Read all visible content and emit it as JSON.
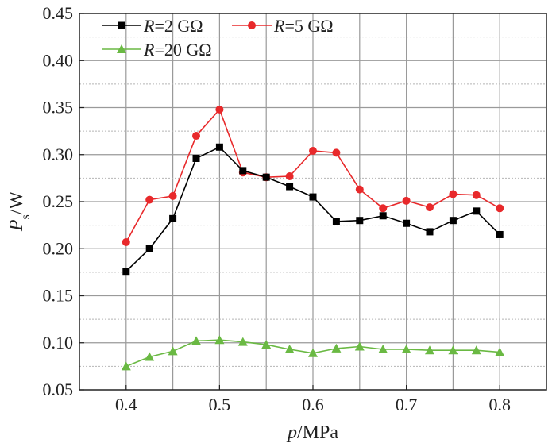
{
  "chart_data": {
    "type": "line",
    "xlabel": {
      "var": "p",
      "unit": "/MPa"
    },
    "ylabel": {
      "var": "P",
      "sub": "s",
      "unit": "/W"
    },
    "xlim": [
      0.35,
      0.85
    ],
    "ylim": [
      0.05,
      0.45
    ],
    "xticks": [
      0.4,
      0.5,
      0.6,
      0.7,
      0.8
    ],
    "yticks": [
      0.05,
      0.1,
      0.15,
      0.2,
      0.25,
      0.3,
      0.35,
      0.4,
      0.45
    ],
    "xtick_labels": [
      "0.4",
      "0.5",
      "0.6",
      "0.7",
      "0.8"
    ],
    "ytick_labels": [
      "0.05",
      "0.10",
      "0.15",
      "0.20",
      "0.25",
      "0.30",
      "0.35",
      "0.40",
      "0.45"
    ],
    "grid": true,
    "legend_position": "top-left",
    "x": [
      0.4,
      0.425,
      0.45,
      0.475,
      0.5,
      0.525,
      0.55,
      0.575,
      0.6,
      0.625,
      0.65,
      0.675,
      0.7,
      0.725,
      0.75,
      0.775,
      0.8
    ],
    "series": [
      {
        "name": "R=2 GΩ",
        "name_var": "R",
        "name_rest": "=2 GΩ",
        "color": "#000000",
        "marker": "square",
        "values": [
          0.176,
          0.2,
          0.232,
          0.296,
          0.308,
          0.283,
          0.276,
          0.266,
          0.255,
          0.229,
          0.23,
          0.235,
          0.227,
          0.218,
          0.23,
          0.24,
          0.215
        ]
      },
      {
        "name": "R=5 GΩ",
        "name_var": "R",
        "name_rest": "=5 GΩ",
        "color": "#e8292b",
        "marker": "circle",
        "values": [
          0.207,
          0.252,
          0.256,
          0.32,
          0.348,
          0.281,
          0.276,
          0.277,
          0.304,
          0.302,
          0.263,
          0.243,
          0.251,
          0.244,
          0.258,
          0.257,
          0.243
        ]
      },
      {
        "name": "R=20 GΩ",
        "name_var": "R",
        "name_rest": "=20 GΩ",
        "color": "#6ab943",
        "marker": "triangle",
        "values": [
          0.075,
          0.085,
          0.091,
          0.102,
          0.103,
          0.101,
          0.098,
          0.093,
          0.089,
          0.094,
          0.096,
          0.093,
          0.093,
          0.092,
          0.092,
          0.092,
          0.09
        ]
      }
    ]
  }
}
